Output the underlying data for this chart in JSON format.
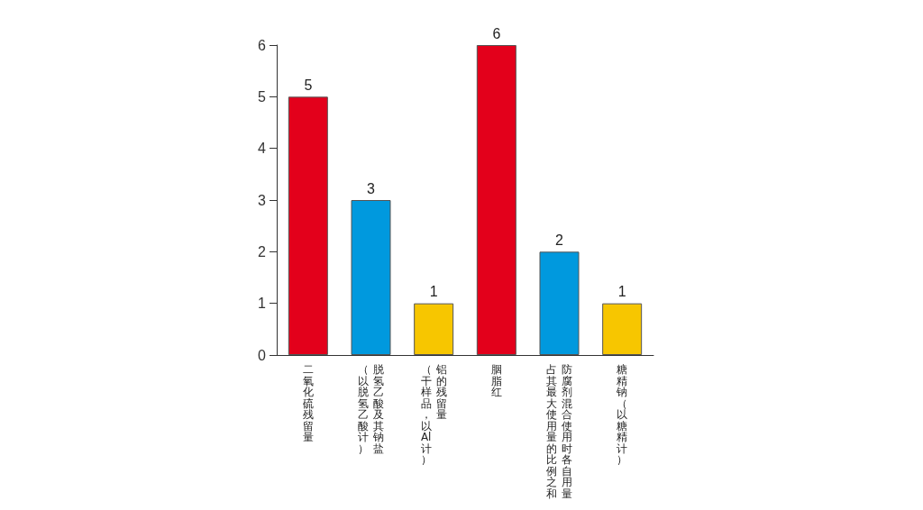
{
  "chart_data": {
    "type": "bar",
    "categories": [
      "二氧化硫残留量",
      "脱氢乙酸及其钠盐（以脱氢乙酸计）",
      "铝的残留量（干样品，以Al计）",
      "胭脂红",
      "防腐剂混合使用时各自用量占其最大使用量的比例之和",
      "糖精钠（以糖精计）"
    ],
    "values": [
      5,
      3,
      1,
      6,
      2,
      1
    ],
    "colors": [
      "#e3001b",
      "#0099de",
      "#f7c600",
      "#e3001b",
      "#0099de",
      "#f7c600"
    ],
    "ylim": [
      0,
      6
    ],
    "yticks": [
      0,
      1,
      2,
      3,
      4,
      5,
      6
    ],
    "data_labels": true,
    "grid": false
  }
}
